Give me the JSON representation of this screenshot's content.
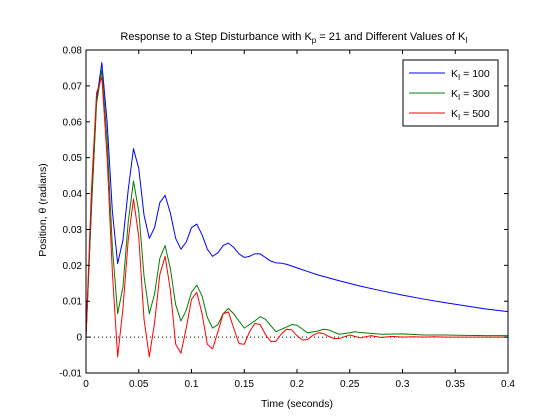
{
  "chart_data": {
    "type": "line",
    "title": {
      "prefix": "Response to a Step Disturbance with K",
      "sub1": "p",
      "middle": " = 21 and Different Values of K",
      "sub2": "I"
    },
    "xlabel": "Time (seconds)",
    "ylabel": "Position, θ (radians)",
    "xlim": [
      0,
      0.4
    ],
    "ylim": [
      -0.01,
      0.08
    ],
    "xticks": [
      0,
      0.05,
      0.1,
      0.15,
      0.2,
      0.25,
      0.3,
      0.35,
      0.4
    ],
    "xtick_labels": [
      "0",
      "0.05",
      "0.1",
      "0.15",
      "0.2",
      "0.25",
      "0.3",
      "0.35",
      "0.4"
    ],
    "yticks": [
      -0.01,
      0,
      0.01,
      0.02,
      0.03,
      0.04,
      0.05,
      0.06,
      0.07,
      0.08
    ],
    "ytick_labels": [
      "-0.01",
      "0",
      "0.01",
      "0.02",
      "0.03",
      "0.04",
      "0.05",
      "0.06",
      "0.07",
      "0.08"
    ],
    "grid": false,
    "zero_line": "dotted",
    "legend_position": "top-right",
    "series": [
      {
        "legend_main": "K",
        "legend_sub": "I",
        "legend_value": " = 100",
        "color": "#0000ff",
        "x": [
          0,
          0.005,
          0.01,
          0.015,
          0.02,
          0.025,
          0.03,
          0.035,
          0.04,
          0.045,
          0.05,
          0.055,
          0.06,
          0.065,
          0.07,
          0.075,
          0.08,
          0.085,
          0.09,
          0.095,
          0.1,
          0.105,
          0.11,
          0.115,
          0.12,
          0.125,
          0.13,
          0.135,
          0.14,
          0.145,
          0.15,
          0.155,
          0.16,
          0.165,
          0.17,
          0.175,
          0.18,
          0.185,
          0.19,
          0.2,
          0.21,
          0.22,
          0.24,
          0.26,
          0.28,
          0.3,
          0.32,
          0.34,
          0.36,
          0.38,
          0.4
        ],
        "y": [
          0,
          0.035,
          0.066,
          0.0765,
          0.06,
          0.035,
          0.0205,
          0.027,
          0.041,
          0.0525,
          0.047,
          0.034,
          0.0275,
          0.0305,
          0.0375,
          0.0395,
          0.0345,
          0.0275,
          0.0245,
          0.0265,
          0.0305,
          0.0315,
          0.0285,
          0.0245,
          0.0225,
          0.0235,
          0.0255,
          0.0262,
          0.025,
          0.0232,
          0.0222,
          0.0225,
          0.0232,
          0.0232,
          0.0222,
          0.0212,
          0.0207,
          0.0206,
          0.0203,
          0.0193,
          0.0183,
          0.0173,
          0.0157,
          0.0142,
          0.0129,
          0.0117,
          0.0106,
          0.0096,
          0.0087,
          0.0078,
          0.0071
        ]
      },
      {
        "legend_main": "K",
        "legend_sub": "I",
        "legend_value": " = 300",
        "color": "#008000",
        "x": [
          0,
          0.005,
          0.01,
          0.015,
          0.02,
          0.025,
          0.03,
          0.035,
          0.04,
          0.045,
          0.05,
          0.055,
          0.06,
          0.065,
          0.07,
          0.075,
          0.08,
          0.085,
          0.09,
          0.095,
          0.1,
          0.105,
          0.11,
          0.115,
          0.12,
          0.125,
          0.13,
          0.135,
          0.14,
          0.15,
          0.16,
          0.165,
          0.17,
          0.18,
          0.19,
          0.195,
          0.2,
          0.21,
          0.22,
          0.225,
          0.23,
          0.24,
          0.25,
          0.255,
          0.26,
          0.28,
          0.3,
          0.32,
          0.34,
          0.36,
          0.38,
          0.4
        ],
        "y": [
          0,
          0.035,
          0.065,
          0.0745,
          0.055,
          0.025,
          0.0065,
          0.014,
          0.032,
          0.0435,
          0.035,
          0.017,
          0.0065,
          0.012,
          0.022,
          0.0255,
          0.019,
          0.009,
          0.0045,
          0.0075,
          0.0125,
          0.0145,
          0.0115,
          0.0055,
          0.0025,
          0.0035,
          0.0065,
          0.008,
          0.0065,
          0.0025,
          0.0045,
          0.0057,
          0.005,
          0.0015,
          0.0028,
          0.0035,
          0.0033,
          0.0012,
          0.0017,
          0.0022,
          0.002,
          0.0008,
          0.0012,
          0.0015,
          0.0013,
          0.0008,
          0.0009,
          0.0006,
          0.0006,
          0.0005,
          0.0004,
          0.0004
        ]
      },
      {
        "legend_main": "K",
        "legend_sub": "I",
        "legend_value": " = 500",
        "color": "#ff0000",
        "x": [
          0,
          0.005,
          0.01,
          0.015,
          0.02,
          0.025,
          0.03,
          0.035,
          0.04,
          0.045,
          0.05,
          0.055,
          0.06,
          0.065,
          0.07,
          0.075,
          0.08,
          0.085,
          0.09,
          0.095,
          0.1,
          0.105,
          0.11,
          0.115,
          0.12,
          0.125,
          0.13,
          0.135,
          0.14,
          0.145,
          0.15,
          0.155,
          0.16,
          0.165,
          0.17,
          0.175,
          0.18,
          0.185,
          0.19,
          0.195,
          0.2,
          0.205,
          0.21,
          0.215,
          0.22,
          0.225,
          0.23,
          0.235,
          0.24,
          0.25,
          0.26,
          0.27,
          0.28,
          0.29,
          0.3,
          0.31,
          0.32,
          0.33,
          0.34,
          0.36,
          0.38,
          0.4
        ],
        "y": [
          0,
          0.04,
          0.068,
          0.0725,
          0.05,
          0.018,
          -0.0055,
          0.008,
          0.027,
          0.0385,
          0.028,
          0.005,
          -0.0055,
          0.004,
          0.0175,
          0.0225,
          0.013,
          -0.002,
          -0.0045,
          0.0025,
          0.0105,
          0.0125,
          0.0065,
          -0.002,
          -0.0033,
          0.0015,
          0.0065,
          0.007,
          0.0025,
          -0.0018,
          -0.002,
          0.0015,
          0.0038,
          0.0035,
          0.0008,
          -0.0012,
          -0.0012,
          0.0008,
          0.0022,
          0.002,
          0.0004,
          -0.0008,
          -0.0007,
          0.0005,
          0.0012,
          0.001,
          0.0002,
          -0.0004,
          -0.0004,
          0.0006,
          -0.0002,
          0.0004,
          -0.0001,
          0.0002,
          0.0,
          0.0001,
          0.0,
          0.0001,
          0.0,
          0.0,
          0.0,
          0.0
        ]
      }
    ]
  }
}
